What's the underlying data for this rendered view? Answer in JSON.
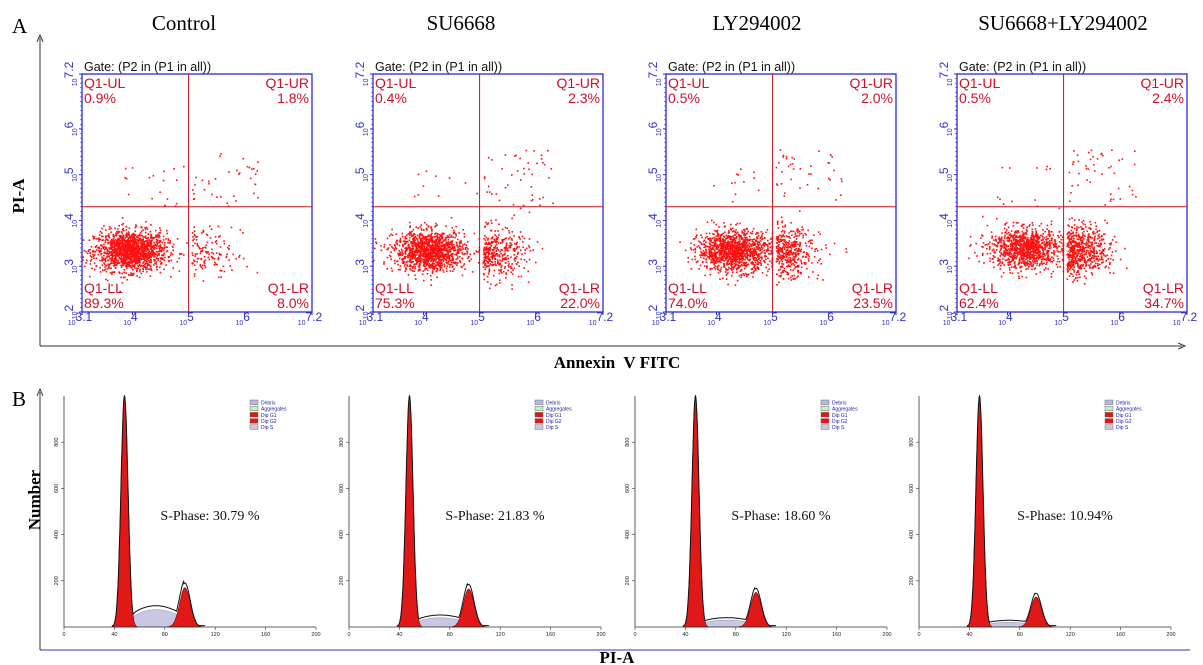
{
  "panel_a": {
    "letter": "A",
    "y_axis_title": "PI-A",
    "x_axis_title": "Annexin  V FITC",
    "gate_label": "Gate: (P2 in (P1 in all))",
    "x_tick_labels": [
      "3.1",
      "4",
      "5",
      "6",
      "7.2"
    ],
    "y_tick_labels": [
      "2",
      "3",
      "4",
      "5",
      "6",
      "7.2"
    ],
    "quadrant_names": [
      "Q1-UL",
      "Q1-UR",
      "Q1-LL",
      "Q1-LR"
    ]
  },
  "panel_b": {
    "letter": "B",
    "y_axis_title": "Number",
    "x_axis_title": "PI-A",
    "legend_labels": [
      "Debris",
      "Aggregates",
      "Dip G1",
      "Dip G2",
      "Dip S"
    ],
    "x_tick_labels": [
      "0",
      "40",
      "80",
      "120",
      "160",
      "200"
    ],
    "y_tick_labels": [
      "200",
      "400",
      "600",
      "800"
    ]
  },
  "colors": {
    "dots": "#ff1010",
    "quadrant_lines": "#cc1020",
    "quadrant_text": "#d0102a",
    "frame": "#2a2ad8",
    "tick_text": "#3030c8",
    "g1_g2_fill": "#e01818",
    "s_phase_fill": "#c8c8e4",
    "outline": "#111111"
  },
  "chart_data": [
    {
      "type": "scatter",
      "panel": "A",
      "title": "Control",
      "xlabel": "Annexin  V FITC",
      "ylabel": "PI-A",
      "scale": "log",
      "xlim": [
        3.1,
        7.2
      ],
      "ylim": [
        2,
        7.2
      ],
      "quadrant_divider": {
        "x": 5.0,
        "y": 4.3
      },
      "quadrants": {
        "Q1-UL": "0.9%",
        "Q1-UR": "1.8%",
        "Q1-LL": "89.3%",
        "Q1-LR": "8.0%"
      },
      "cluster_center": [
        3.95,
        3.35
      ]
    },
    {
      "type": "scatter",
      "panel": "A",
      "title": "SU6668",
      "xlabel": "Annexin  V FITC",
      "ylabel": "PI-A",
      "scale": "log",
      "xlim": [
        3.1,
        7.2
      ],
      "ylim": [
        2,
        7.2
      ],
      "quadrant_divider": {
        "x": 5.0,
        "y": 4.3
      },
      "quadrants": {
        "Q1-UL": "0.4%",
        "Q1-UR": "2.3%",
        "Q1-LL": "75.3%",
        "Q1-LR": "22.0%"
      },
      "cluster_center": [
        4.1,
        3.35
      ]
    },
    {
      "type": "scatter",
      "panel": "A",
      "title": "LY294002",
      "xlabel": "Annexin  V FITC",
      "ylabel": "PI-A",
      "scale": "log",
      "xlim": [
        3.1,
        7.2
      ],
      "ylim": [
        2,
        7.2
      ],
      "quadrant_divider": {
        "x": 5.0,
        "y": 4.3
      },
      "quadrants": {
        "Q1-UL": "0.5%",
        "Q1-UR": "2.0%",
        "Q1-LL": "74.0%",
        "Q1-LR": "23.5%"
      },
      "cluster_center": [
        4.3,
        3.35
      ]
    },
    {
      "type": "scatter",
      "panel": "A",
      "title": "SU6668+LY294002",
      "xlabel": "Annexin  V FITC",
      "ylabel": "PI-A",
      "scale": "log",
      "xlim": [
        3.1,
        7.2
      ],
      "ylim": [
        2,
        7.2
      ],
      "quadrant_divider": {
        "x": 5.0,
        "y": 4.3
      },
      "quadrants": {
        "Q1-UL": "0.5%",
        "Q1-UR": "2.4%",
        "Q1-LL": "62.4%",
        "Q1-LR": "34.7%"
      },
      "cluster_center": [
        4.3,
        3.4
      ]
    },
    {
      "type": "area",
      "panel": "B",
      "title": "Control",
      "xlabel": "PI-A",
      "ylabel": "Number",
      "xlim": [
        0,
        200
      ],
      "ylim": [
        0,
        1000
      ],
      "s_phase_label": "S-Phase: 30.79 %",
      "g1_peak": {
        "x": 48,
        "height": 1000
      },
      "g2_peak": {
        "x": 96,
        "height": 170
      },
      "s_phase_level": 75
    },
    {
      "type": "area",
      "panel": "B",
      "title": "SU6668",
      "xlabel": "PI-A",
      "ylabel": "Number",
      "xlim": [
        0,
        200
      ],
      "ylim": [
        0,
        1000
      ],
      "s_phase_label": "S-Phase: 21.83 %",
      "g1_peak": {
        "x": 48,
        "height": 1000
      },
      "g2_peak": {
        "x": 95,
        "height": 165
      },
      "s_phase_level": 40
    },
    {
      "type": "area",
      "panel": "B",
      "title": "LY294002",
      "xlabel": "PI-A",
      "ylabel": "Number",
      "xlim": [
        0,
        200
      ],
      "ylim": [
        0,
        1000
      ],
      "s_phase_label": "S-Phase: 18.60 %",
      "g1_peak": {
        "x": 48,
        "height": 1000
      },
      "g2_peak": {
        "x": 96,
        "height": 150
      },
      "s_phase_level": 30
    },
    {
      "type": "area",
      "panel": "B",
      "title": "SU6668+LY294002",
      "xlabel": "PI-A",
      "ylabel": "Number",
      "xlim": [
        0,
        200
      ],
      "ylim": [
        0,
        1000
      ],
      "s_phase_label": "S-Phase: 10.94%",
      "g1_peak": {
        "x": 48,
        "height": 1000
      },
      "g2_peak": {
        "x": 93,
        "height": 130
      },
      "s_phase_level": 20
    }
  ]
}
